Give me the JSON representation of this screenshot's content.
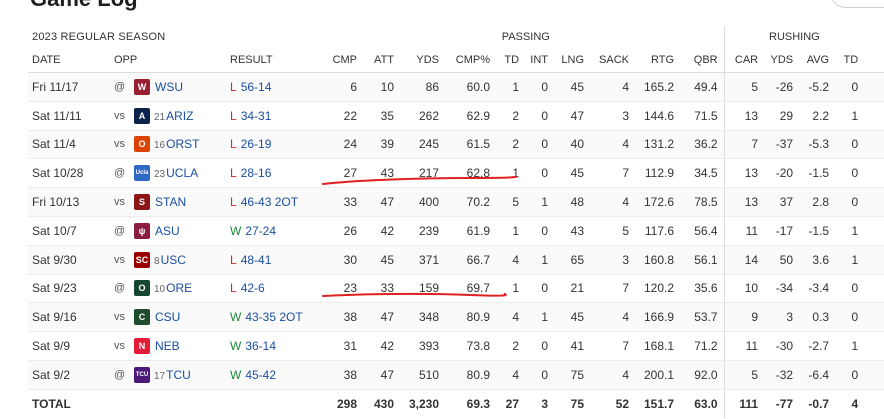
{
  "page_heading": "Game Log",
  "season_label": "2023 REGULAR SEASON",
  "groups": {
    "passing": "PASSING",
    "rushing": "RUSHING"
  },
  "columns": {
    "date": "DATE",
    "opp": "OPP",
    "result": "RESULT",
    "passing": [
      "CMP",
      "ATT",
      "YDS",
      "CMP%",
      "TD",
      "INT",
      "LNG",
      "SACK",
      "RTG",
      "QBR"
    ],
    "rushing": [
      "CAR",
      "YDS",
      "AVG",
      "TD"
    ]
  },
  "games": [
    {
      "date": "Fri 11/17",
      "venue": "@",
      "logo": {
        "text": "W",
        "color": "#981e32"
      },
      "rank": "",
      "team": "WSU",
      "wl": "L",
      "score": "56-14",
      "passing": [
        "6",
        "10",
        "86",
        "60.0",
        "1",
        "0",
        "45",
        "4",
        "165.2",
        "49.4"
      ],
      "rushing": [
        "5",
        "-26",
        "-5.2",
        "0"
      ]
    },
    {
      "date": "Sat 11/11",
      "venue": "vs",
      "logo": {
        "text": "A",
        "color": "#0c234b"
      },
      "rank": "21",
      "team": "ARIZ",
      "wl": "L",
      "score": "34-31",
      "passing": [
        "22",
        "35",
        "262",
        "62.9",
        "2",
        "0",
        "47",
        "3",
        "144.6",
        "71.5"
      ],
      "rushing": [
        "13",
        "29",
        "2.2",
        "1"
      ]
    },
    {
      "date": "Sat 11/4",
      "venue": "vs",
      "logo": {
        "text": "O",
        "color": "#dc4405"
      },
      "rank": "16",
      "team": "ORST",
      "wl": "L",
      "score": "26-19",
      "passing": [
        "24",
        "39",
        "245",
        "61.5",
        "2",
        "0",
        "40",
        "4",
        "131.2",
        "36.2"
      ],
      "rushing": [
        "7",
        "-37",
        "-5.3",
        "0"
      ]
    },
    {
      "date": "Sat 10/28",
      "venue": "@",
      "logo": {
        "text": "Ucla",
        "color": "#2d68c4"
      },
      "rank": "23",
      "team": "UCLA",
      "wl": "L",
      "score": "28-16",
      "passing": [
        "27",
        "43",
        "217",
        "62.8",
        "1",
        "0",
        "45",
        "7",
        "112.9",
        "34.5"
      ],
      "rushing": [
        "13",
        "-20",
        "-1.5",
        "0"
      ]
    },
    {
      "date": "Fri 10/13",
      "venue": "vs",
      "logo": {
        "text": "S",
        "color": "#8c1515"
      },
      "rank": "",
      "team": "STAN",
      "wl": "L",
      "score": "46-43 2OT",
      "passing": [
        "33",
        "47",
        "400",
        "70.2",
        "5",
        "1",
        "48",
        "4",
        "172.6",
        "78.5"
      ],
      "rushing": [
        "13",
        "37",
        "2.8",
        "0"
      ]
    },
    {
      "date": "Sat 10/7",
      "venue": "@",
      "logo": {
        "text": "ψ",
        "color": "#8c1d40"
      },
      "rank": "",
      "team": "ASU",
      "wl": "W",
      "score": "27-24",
      "passing": [
        "26",
        "42",
        "239",
        "61.9",
        "1",
        "0",
        "43",
        "5",
        "117.6",
        "56.4"
      ],
      "rushing": [
        "11",
        "-17",
        "-1.5",
        "1"
      ]
    },
    {
      "date": "Sat 9/30",
      "venue": "vs",
      "logo": {
        "text": "SC",
        "color": "#990000"
      },
      "rank": "8",
      "team": "USC",
      "wl": "L",
      "score": "48-41",
      "passing": [
        "30",
        "45",
        "371",
        "66.7",
        "4",
        "1",
        "65",
        "3",
        "160.8",
        "56.1"
      ],
      "rushing": [
        "14",
        "50",
        "3.6",
        "1"
      ]
    },
    {
      "date": "Sat 9/23",
      "venue": "@",
      "logo": {
        "text": "O",
        "color": "#154733"
      },
      "rank": "10",
      "team": "ORE",
      "wl": "L",
      "score": "42-6",
      "passing": [
        "23",
        "33",
        "159",
        "69.7",
        "1",
        "0",
        "21",
        "7",
        "120.2",
        "35.6"
      ],
      "rushing": [
        "10",
        "-34",
        "-3.4",
        "0"
      ]
    },
    {
      "date": "Sat 9/16",
      "venue": "vs",
      "logo": {
        "text": "C",
        "color": "#1e4d2b"
      },
      "rank": "",
      "team": "CSU",
      "wl": "W",
      "score": "43-35 2OT",
      "passing": [
        "38",
        "47",
        "348",
        "80.9",
        "4",
        "1",
        "45",
        "4",
        "166.9",
        "53.7"
      ],
      "rushing": [
        "9",
        "3",
        "0.3",
        "0"
      ]
    },
    {
      "date": "Sat 9/9",
      "venue": "vs",
      "logo": {
        "text": "N",
        "color": "#e41c38"
      },
      "rank": "",
      "team": "NEB",
      "wl": "W",
      "score": "36-14",
      "passing": [
        "31",
        "42",
        "393",
        "73.8",
        "2",
        "0",
        "41",
        "7",
        "168.1",
        "71.2"
      ],
      "rushing": [
        "11",
        "-30",
        "-2.7",
        "1"
      ]
    },
    {
      "date": "Sat 9/2",
      "venue": "@",
      "logo": {
        "text": "TCU",
        "color": "#4d1979"
      },
      "rank": "17",
      "team": "TCU",
      "wl": "W",
      "score": "45-42",
      "passing": [
        "38",
        "47",
        "510",
        "80.9",
        "4",
        "0",
        "75",
        "4",
        "200.1",
        "92.0"
      ],
      "rushing": [
        "5",
        "-32",
        "-6.4",
        "0"
      ]
    }
  ],
  "totals": {
    "label": "TOTAL",
    "passing": [
      "298",
      "430",
      "3,230",
      "69.3",
      "27",
      "3",
      "75",
      "52",
      "151.7",
      "63.0"
    ],
    "rushing": [
      "111",
      "-77",
      "-0.7",
      "4"
    ]
  },
  "colors": {
    "loss": "#d62828",
    "win": "#1e8a3a",
    "link": "#1a4fa0",
    "annotation": "#e02020"
  }
}
